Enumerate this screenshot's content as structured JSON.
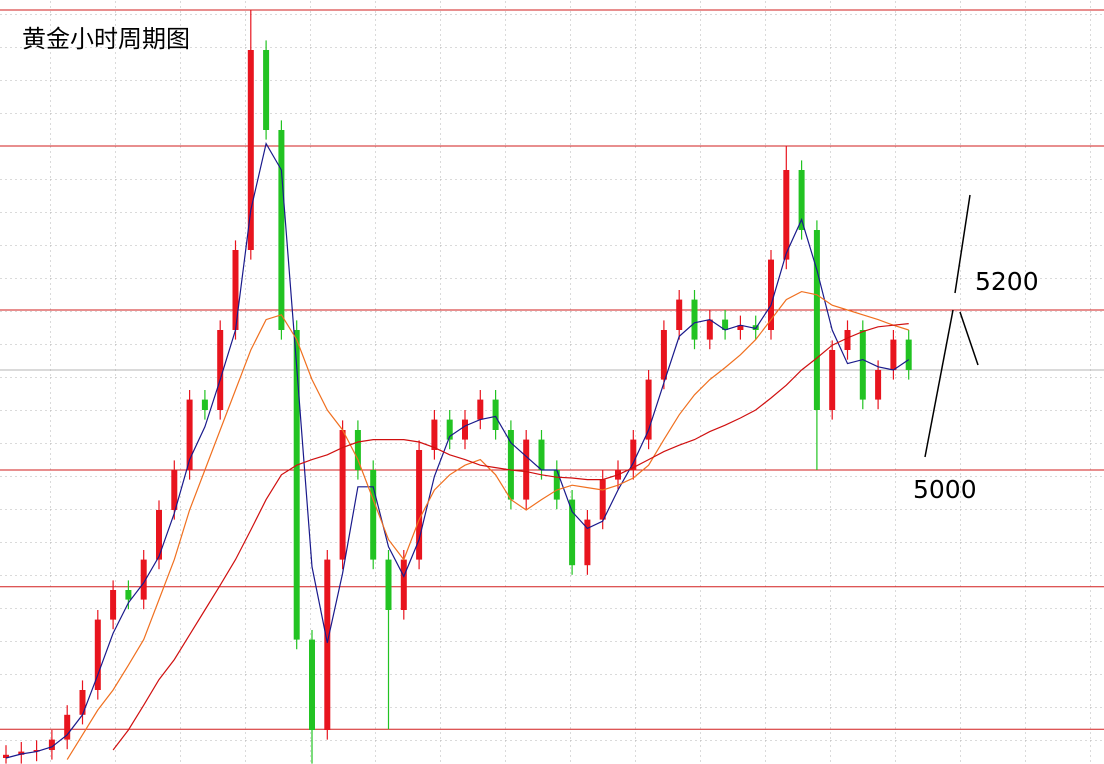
{
  "chart_data": {
    "type": "candlestick",
    "title": "黄金小时周期图",
    "annotations": [
      "5200",
      "5000"
    ],
    "ylim": [
      4632.5,
      5587.5
    ],
    "grid": true,
    "up_color": "#e8141e",
    "down_color": "#22c322",
    "levels": [
      5575,
      5405,
      5200,
      5000,
      4854,
      4676
    ],
    "level_color": "#d21e1e",
    "open": [
      4640,
      4644,
      4648,
      4650,
      4663,
      4694,
      4725,
      4813,
      4850,
      4838,
      4888,
      4950,
      5000,
      5088,
      5075,
      5175,
      5275,
      5525,
      5425,
      5175,
      4788,
      4675,
      4888,
      5050,
      5000,
      4888,
      4825,
      4888,
      5025,
      5063,
      5038,
      5063,
      5088,
      5050,
      4963,
      5038,
      5000,
      4963,
      4881,
      4938,
      4988,
      5000,
      5038,
      5113,
      5175,
      5213,
      5163,
      5188,
      5175,
      5181,
      5175,
      5263,
      5375,
      5300,
      5075,
      5150,
      5175,
      5088,
      5125,
      5163
    ],
    "high": [
      4656,
      4660,
      4662,
      4675,
      4706,
      4737,
      4825,
      4862,
      4862,
      4900,
      4962,
      5012,
      5100,
      5100,
      5187,
      5287,
      5575,
      5537,
      5437,
      5187,
      4800,
      4900,
      5062,
      5062,
      5012,
      4900,
      4900,
      5037,
      5075,
      5075,
      5075,
      5100,
      5100,
      5062,
      5050,
      5050,
      5012,
      4975,
      4950,
      5000,
      5012,
      5050,
      5125,
      5187,
      5225,
      5225,
      5200,
      5200,
      5193,
      5193,
      5275,
      5405,
      5387,
      5312,
      5162,
      5187,
      5187,
      5137,
      5175,
      5175
    ],
    "low": [
      4633,
      4633,
      4636,
      4638,
      4651,
      4682,
      4713,
      4801,
      4826,
      4826,
      4876,
      4938,
      4988,
      5063,
      5063,
      5163,
      5263,
      5413,
      5163,
      4776,
      4633,
      4663,
      4876,
      4988,
      4876,
      4676,
      4813,
      4876,
      5013,
      5026,
      5026,
      5051,
      5038,
      4951,
      4951,
      4988,
      4951,
      4869,
      4869,
      4926,
      4976,
      4988,
      5026,
      5101,
      5163,
      5151,
      5151,
      5163,
      5163,
      5163,
      5163,
      5251,
      5288,
      5000,
      5063,
      5138,
      5076,
      5076,
      5113,
      5113
    ],
    "close": [
      4644,
      4648,
      4650,
      4663,
      4694,
      4725,
      4813,
      4850,
      4838,
      4888,
      4950,
      5000,
      5088,
      5075,
      5175,
      5275,
      5525,
      5425,
      5175,
      4788,
      4675,
      4888,
      5050,
      5000,
      4888,
      4825,
      4888,
      5025,
      5063,
      5038,
      5063,
      5088,
      5050,
      4963,
      5038,
      5000,
      4963,
      4881,
      4938,
      4988,
      5000,
      5038,
      5113,
      5175,
      5213,
      5163,
      5188,
      5175,
      5181,
      5175,
      5263,
      5375,
      5300,
      5075,
      5150,
      5175,
      5088,
      5125,
      5163,
      5125
    ],
    "series": [
      {
        "color": "#1a1a8c",
        "values": [
          4640,
          4645,
          4648,
          4654,
          4669,
          4694,
          4744,
          4796,
          4834,
          4859,
          4892,
          4946,
          5013,
          5054,
          5113,
          5175,
          5325,
          5408,
          5375,
          5129,
          4879,
          4784,
          4871,
          4979,
          4979,
          4904,
          4867,
          4913,
          4992,
          5042,
          5055,
          5063,
          5067,
          5034,
          5017,
          5000,
          5000,
          4948,
          4927,
          4936,
          4975,
          5009,
          5050,
          5109,
          5167,
          5184,
          5188,
          5175,
          5181,
          5177,
          5206,
          5271,
          5313,
          5250,
          5175,
          5133,
          5138,
          5129,
          5125,
          5138
        ]
      },
      {
        "color": "#f07020",
        "values": [
          null,
          null,
          null,
          null,
          4638,
          4669,
          4700,
          4725,
          4756,
          4788,
          4838,
          4888,
          4950,
          5000,
          5050,
          5100,
          5150,
          5188,
          5194,
          5163,
          5113,
          5075,
          5050,
          5013,
          4963,
          4913,
          4888,
          4938,
          4975,
          4994,
          5006,
          5013,
          4994,
          4963,
          4950,
          4963,
          4975,
          4981,
          4978,
          4975,
          4981,
          4990,
          5006,
          5038,
          5069,
          5094,
          5113,
          5128,
          5144,
          5163,
          5188,
          5213,
          5223,
          5219,
          5206,
          5200,
          5194,
          5188,
          5181,
          5175
        ]
      },
      {
        "color": "#d01010",
        "values": [
          null,
          null,
          null,
          null,
          null,
          null,
          null,
          4650,
          4675,
          4706,
          4738,
          4763,
          4794,
          4825,
          4856,
          4888,
          4925,
          4963,
          4994,
          5006,
          5013,
          5019,
          5028,
          5035,
          5038,
          5038,
          5038,
          5035,
          5028,
          5019,
          5013,
          5006,
          5003,
          5000,
          4998,
          4994,
          4991,
          4990,
          4988,
          4988,
          4994,
          5003,
          5013,
          5023,
          5031,
          5038,
          5048,
          5056,
          5065,
          5075,
          5090,
          5106,
          5125,
          5140,
          5156,
          5165,
          5173,
          5179,
          5181,
          5183
        ]
      }
    ]
  }
}
